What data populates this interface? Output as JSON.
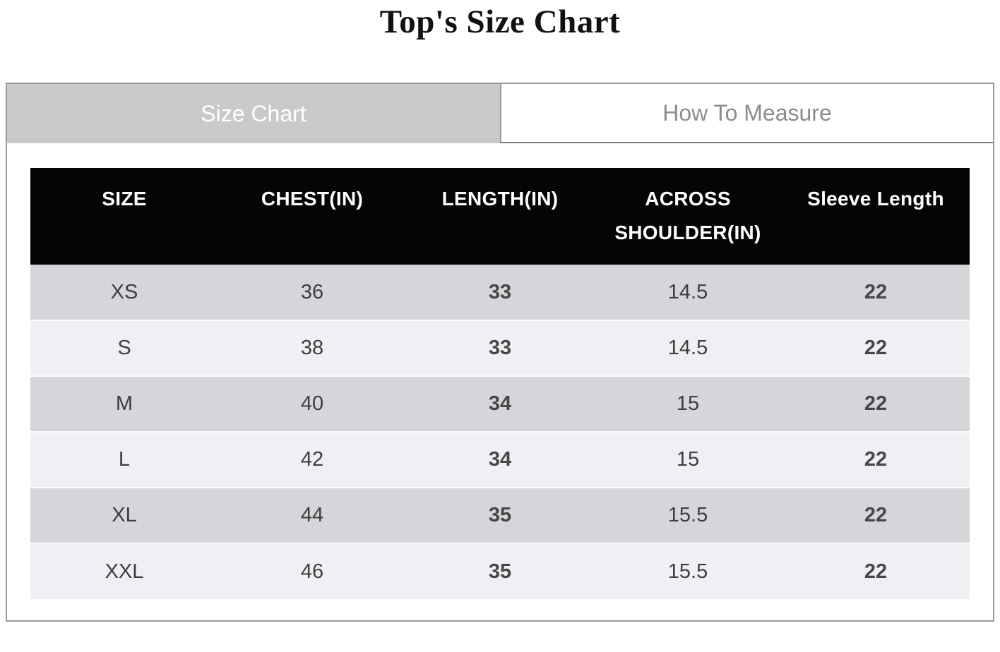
{
  "page_title": "Top's Size Chart",
  "tabs": [
    {
      "label": "Size Chart",
      "active": true
    },
    {
      "label": "How To Measure",
      "active": false
    }
  ],
  "size_table": {
    "columns": [
      "SIZE",
      "CHEST(IN)",
      "LENGTH(IN)",
      "ACROSS SHOULDER(IN)",
      "Sleeve Length"
    ],
    "rows": [
      [
        "XS",
        "36",
        "33",
        "14.5",
        "22"
      ],
      [
        "S",
        "38",
        "33",
        "14.5",
        "22"
      ],
      [
        "M",
        "40",
        "34",
        "15",
        "22"
      ],
      [
        "L",
        "42",
        "34",
        "15",
        "22"
      ],
      [
        "XL",
        "44",
        "35",
        "15.5",
        "22"
      ],
      [
        "XXL",
        "46",
        "35",
        "15.5",
        "22"
      ]
    ]
  },
  "colors": {
    "title_text": "#111111",
    "panel_border": "#9b9b9b",
    "active_tab_bg": "#c9c9c9",
    "active_tab_text": "#ffffff",
    "inactive_tab_text": "#8c8c8c",
    "header_bg": "#050505",
    "header_text": "#ffffff",
    "row_dark": "#d6d5da",
    "row_light": "#f0eff3",
    "body_text": "#3e3e3e"
  }
}
